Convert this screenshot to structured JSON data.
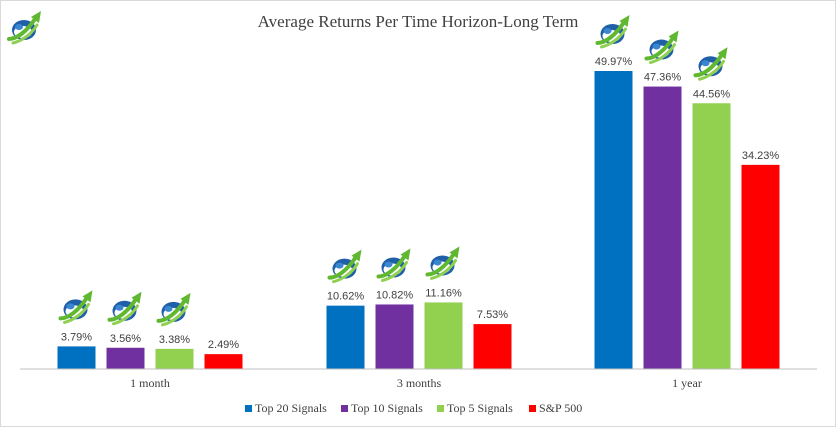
{
  "chart_data": {
    "type": "bar",
    "title": "Average Returns Per Time Horizon-Long Term",
    "categories": [
      "1 month",
      "3 months",
      "1 year"
    ],
    "series": [
      {
        "name": "Top 20 Signals",
        "color": "#0070C0",
        "values": [
          3.79,
          10.62,
          49.97
        ],
        "labels": [
          "3.79%",
          "10.62%",
          "49.97%"
        ]
      },
      {
        "name": "Top 10 Signals",
        "color": "#7030A0",
        "values": [
          3.56,
          10.82,
          47.36
        ],
        "labels": [
          "3.56%",
          "10.82%",
          "47.36%"
        ]
      },
      {
        "name": "Top 5 Signals",
        "color": "#92D050",
        "values": [
          3.38,
          11.16,
          44.56
        ],
        "labels": [
          "3.38%",
          "11.16%",
          "44.56%"
        ]
      },
      {
        "name": "S&P 500",
        "color": "#FF0000",
        "values": [
          2.49,
          7.53,
          34.23
        ],
        "labels": [
          "2.49%",
          "7.53%",
          "34.23%"
        ]
      }
    ],
    "ylim": [
      0,
      55
    ],
    "grid": false,
    "legend": "bottom",
    "logo_icon": "rising-arrow-globe-icon",
    "logo_above_series": [
      "Top 20 Signals",
      "Top 10 Signals",
      "Top 5 Signals"
    ]
  }
}
